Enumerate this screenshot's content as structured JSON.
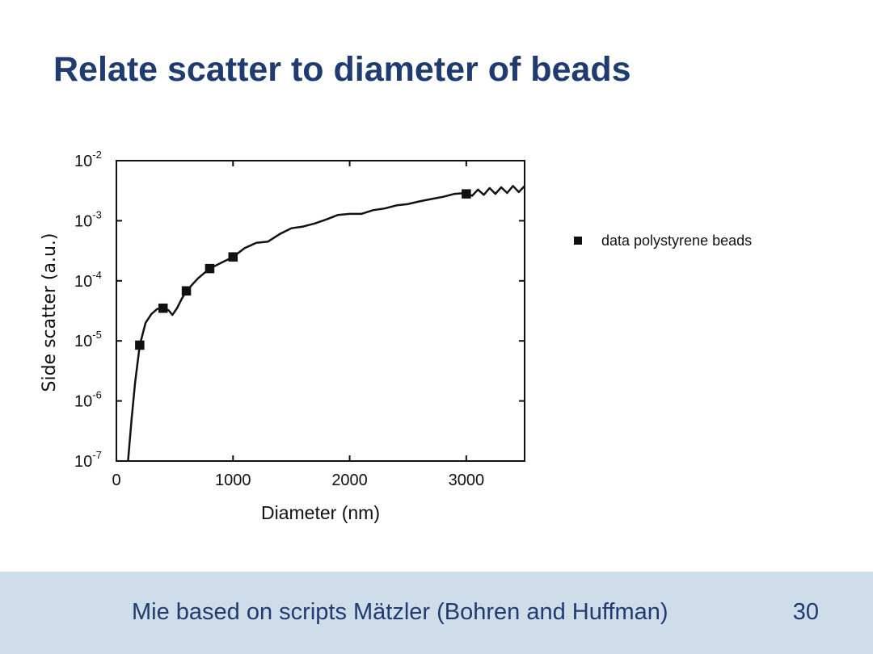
{
  "slide": {
    "title": "Relate scatter to diameter of beads",
    "footer": "Mie based on scripts Mätzler (Bohren and Huffman)",
    "page_number": "30"
  },
  "chart_data": {
    "type": "scatter",
    "x_label": "Diameter (nm)",
    "y_label": "Side scatter (a.u.)",
    "xlim": [
      0,
      3500
    ],
    "xticks": [
      0,
      1000,
      2000,
      3000
    ],
    "ylim": [
      1e-07,
      0.01
    ],
    "y_scale": "log",
    "yticks": [
      {
        "value": 0.01,
        "label": "10",
        "power": "-2"
      },
      {
        "value": 0.001,
        "label": "10",
        "power": "-3"
      },
      {
        "value": 0.0001,
        "label": "10",
        "power": "-4"
      },
      {
        "value": 1e-05,
        "label": "10",
        "power": "-5"
      },
      {
        "value": 1e-06,
        "label": "10",
        "power": "-6"
      },
      {
        "value": 1e-07,
        "label": "10",
        "power": "-7"
      }
    ],
    "legend_position": "right",
    "series": [
      {
        "name": "data polystyrene beads",
        "type": "scatter",
        "marker": "square",
        "color": "#111111",
        "x": [
          200,
          400,
          600,
          800,
          1000,
          3000
        ],
        "values": [
          8.5e-06,
          3.5e-05,
          6.8e-05,
          0.00016,
          0.00025,
          0.0028
        ]
      },
      {
        "type": "line",
        "color": "#111111",
        "x": [
          100,
          130,
          160,
          200,
          250,
          300,
          350,
          400,
          450,
          480,
          520,
          560,
          600,
          700,
          800,
          900,
          1000,
          1100,
          1200,
          1300,
          1400,
          1500,
          1600,
          1700,
          1800,
          1900,
          2000,
          2100,
          2200,
          2300,
          2400,
          2500,
          2600,
          2700,
          2800,
          2900,
          3000,
          3050,
          3100,
          3150,
          3200,
          3250,
          3300,
          3350,
          3400,
          3450,
          3500
        ],
        "values": [
          1e-07,
          5e-07,
          2e-06,
          8.5e-06,
          2e-05,
          2.8e-05,
          3.4e-05,
          3.6e-05,
          3.2e-05,
          2.7e-05,
          3.5e-05,
          5e-05,
          6.8e-05,
          0.00011,
          0.00016,
          0.0002,
          0.00025,
          0.00035,
          0.00043,
          0.00045,
          0.0006,
          0.00075,
          0.0008,
          0.0009,
          0.00105,
          0.00125,
          0.0013,
          0.0013,
          0.0015,
          0.0016,
          0.0018,
          0.0019,
          0.0021,
          0.0023,
          0.0025,
          0.0028,
          0.0029,
          0.0026,
          0.0033,
          0.0027,
          0.0035,
          0.0028,
          0.0036,
          0.0029,
          0.0038,
          0.003,
          0.0038
        ]
      }
    ]
  }
}
